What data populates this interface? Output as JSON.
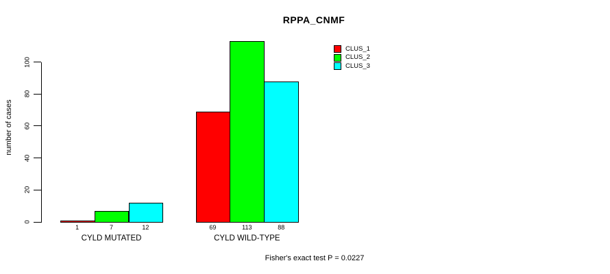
{
  "chart_data": {
    "type": "bar",
    "title": "RPPA_CNMF",
    "xlabel": "",
    "ylabel": "number of cases",
    "categories": [
      "CYLD MUTATED",
      "CYLD WILD-TYPE"
    ],
    "series": [
      {
        "name": "CLUS_1",
        "color": "#ff0000",
        "values": [
          1,
          69
        ]
      },
      {
        "name": "CLUS_2",
        "color": "#00ff00",
        "values": [
          7,
          113
        ]
      },
      {
        "name": "CLUS_3",
        "color": "#00ffff",
        "values": [
          12,
          88
        ]
      }
    ],
    "bar_value_labels": [
      [
        "1",
        "7",
        "12"
      ],
      [
        "69",
        "113",
        "88"
      ]
    ],
    "yticks": [
      "0",
      "20",
      "40",
      "60",
      "80",
      "100"
    ],
    "ylim": [
      0,
      113
    ],
    "grid": false,
    "legend_position": "top-right",
    "legend_entries": [
      "CLUS_1",
      "CLUS_2",
      "CLUS_3"
    ],
    "annotation": "Fisher's exact test P = 0.0227"
  },
  "colors": {
    "background": "#ffffff",
    "axis": "#000000",
    "text": "#000000",
    "clus_1": "#ff0000",
    "clus_2": "#00ff00",
    "clus_3": "#00ffff"
  }
}
